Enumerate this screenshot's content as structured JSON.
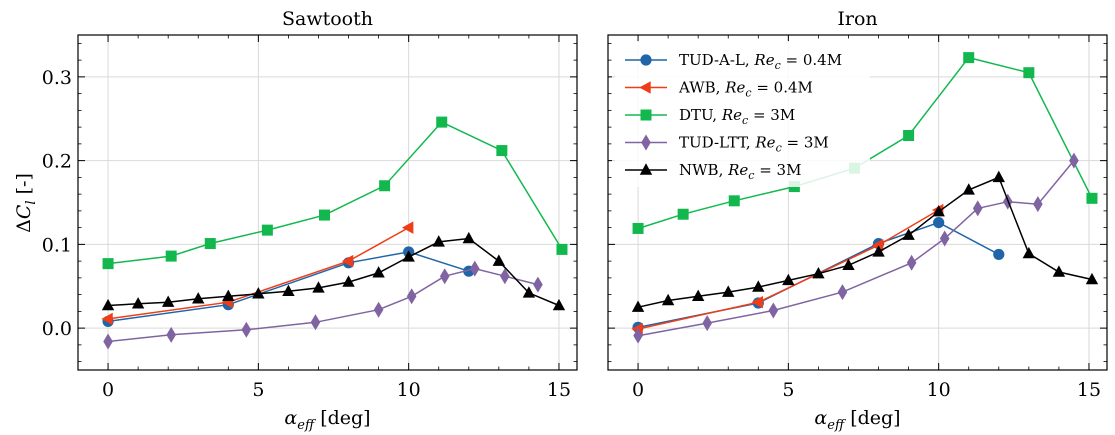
{
  "figure": {
    "ylabel": "ΔCₗ [-]",
    "legend_position": "upper-left of right panel",
    "grid": true,
    "y_ticks": [
      0.0,
      0.1,
      0.2,
      0.3
    ],
    "x_ticks": [
      0,
      5,
      10,
      15
    ],
    "x_tick_labels": [
      "0",
      "5",
      "10",
      "15"
    ],
    "y_tick_labels": [
      "0.0",
      "0.1",
      "0.2",
      "0.3"
    ],
    "xlim": [
      -1,
      15.6
    ],
    "ylim": [
      -0.05,
      0.35
    ]
  },
  "chart_data": [
    {
      "type": "line",
      "title": "Sawtooth",
      "xlabel": "αeff [deg]",
      "ylabel": "ΔCₗ [-]",
      "series": [
        {
          "name": "TUD-A-L, Rec = 0.4M",
          "color": "#1f65a8",
          "marker": "circle",
          "x": [
            0,
            4,
            8,
            10,
            12
          ],
          "y": [
            0.008,
            0.028,
            0.078,
            0.091,
            0.068
          ]
        },
        {
          "name": "AWB, Rec = 0.4M",
          "color": "#f03c17",
          "marker": "triangle-left",
          "x": [
            0,
            4,
            8,
            10
          ],
          "y": [
            0.011,
            0.031,
            0.08,
            0.12
          ]
        },
        {
          "name": "DTU, Rec = 3M",
          "color": "#12b84e",
          "marker": "square",
          "x": [
            0,
            2.1,
            3.4,
            5.3,
            7.2,
            9.2,
            11.1,
            13.1,
            15.1
          ],
          "y": [
            0.077,
            0.086,
            0.101,
            0.117,
            0.135,
            0.17,
            0.246,
            0.212,
            0.094
          ]
        },
        {
          "name": "TUD-LTT, Rec = 3M",
          "color": "#8064a2",
          "marker": "diamond",
          "x": [
            0,
            2.1,
            4.6,
            6.9,
            9.0,
            10.1,
            11.2,
            12.2,
            13.2,
            14.3
          ],
          "y": [
            -0.016,
            -0.008,
            -0.002,
            0.007,
            0.022,
            0.038,
            0.062,
            0.071,
            0.062,
            0.052
          ]
        },
        {
          "name": "NWB, Rec = 3M",
          "color": "#000000",
          "marker": "triangle-up",
          "x": [
            0,
            1.0,
            2.0,
            3.0,
            4.0,
            5.0,
            6.0,
            7.0,
            8.0,
            9.0,
            10.0,
            11.0,
            12.0,
            13.0,
            14.0,
            15.0
          ],
          "y": [
            0.027,
            0.029,
            0.031,
            0.035,
            0.038,
            0.041,
            0.044,
            0.048,
            0.055,
            0.066,
            0.085,
            0.103,
            0.107,
            0.08,
            0.042,
            0.027
          ]
        }
      ]
    },
    {
      "type": "line",
      "title": "Iron",
      "xlabel": "αeff [deg]",
      "series": [
        {
          "name": "TUD-A-L, Rec = 0.4M",
          "color": "#1f65a8",
          "marker": "circle",
          "x": [
            0,
            4,
            8,
            10,
            12
          ],
          "y": [
            0.001,
            0.03,
            0.101,
            0.126,
            0.088
          ]
        },
        {
          "name": "AWB, Rec = 0.4M",
          "color": "#f03c17",
          "marker": "triangle-left",
          "x": [
            0,
            4,
            8,
            10
          ],
          "y": [
            -0.001,
            0.031,
            0.099,
            0.141
          ]
        },
        {
          "name": "DTU, Rec = 3M",
          "color": "#12b84e",
          "marker": "square",
          "x": [
            0,
            1.5,
            3.2,
            5.2,
            7.2,
            9.0,
            11.0,
            13.0,
            15.1
          ],
          "y": [
            0.119,
            0.136,
            0.152,
            0.169,
            0.191,
            0.23,
            0.323,
            0.305,
            0.155
          ]
        },
        {
          "name": "TUD-LTT, Rec = 3M",
          "color": "#8064a2",
          "marker": "diamond",
          "x": [
            0,
            2.3,
            4.5,
            6.8,
            9.1,
            10.2,
            11.3,
            12.3,
            13.3,
            14.5
          ],
          "y": [
            -0.009,
            0.006,
            0.021,
            0.043,
            0.078,
            0.107,
            0.143,
            0.151,
            0.148,
            0.2
          ]
        },
        {
          "name": "NWB, Rec = 3M",
          "color": "#000000",
          "marker": "triangle-up",
          "x": [
            0,
            1.0,
            2.0,
            3.0,
            4.0,
            5.0,
            6.0,
            7.0,
            8.0,
            9.0,
            10.0,
            11.0,
            12.0,
            13.0,
            14.0,
            15.1
          ],
          "y": [
            0.025,
            0.033,
            0.038,
            0.043,
            0.049,
            0.057,
            0.065,
            0.075,
            0.091,
            0.111,
            0.139,
            0.165,
            0.18,
            0.089,
            0.067,
            0.058
          ]
        }
      ]
    }
  ],
  "legend": {
    "items": [
      {
        "name": "TUD-A-L",
        "re": "0.4M",
        "color": "#1f65a8",
        "marker": "circle"
      },
      {
        "name": "AWB",
        "re": "0.4M",
        "color": "#f03c17",
        "marker": "triangle-left"
      },
      {
        "name": "DTU",
        "re": "3M",
        "color": "#12b84e",
        "marker": "square"
      },
      {
        "name": "TUD-LTT",
        "re": "3M",
        "color": "#8064a2",
        "marker": "diamond"
      },
      {
        "name": "NWB",
        "re": "3M",
        "color": "#000000",
        "marker": "triangle-up"
      }
    ]
  }
}
